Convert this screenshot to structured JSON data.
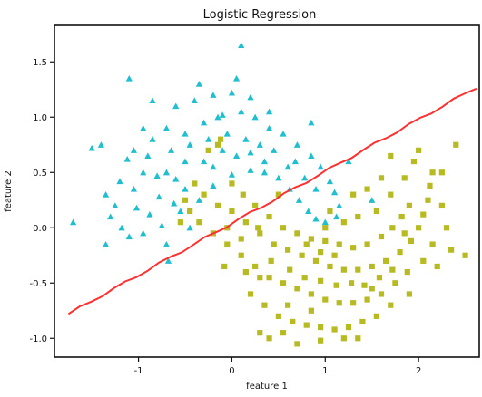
{
  "chart_data": {
    "type": "scatter",
    "title": "Logistic Regression",
    "xlabel": "feature 1",
    "ylabel": "feature 2",
    "xlim": [
      -1.9,
      2.65
    ],
    "ylim": [
      -1.17,
      1.83
    ],
    "xticks": [
      -1,
      0,
      1,
      2
    ],
    "xtick_labels": [
      "-1",
      "0",
      "1",
      "2"
    ],
    "yticks": [
      -1.0,
      -0.5,
      0.0,
      0.5,
      1.0,
      1.5
    ],
    "ytick_labels": [
      "-1.0",
      "-0.5",
      "0.0",
      "0.5",
      "1.0",
      "1.5"
    ],
    "grid": false,
    "legend": false,
    "colors": {
      "class_0": "#1fbfcf",
      "class_1": "#b8ba22",
      "decision_boundary": "#ff3030",
      "axes": "#111111"
    },
    "series": [
      {
        "marker": "triangle",
        "color": "#1fbfcf",
        "points": [
          [
            -1.2,
            0.42
          ],
          [
            -1.05,
            0.35
          ],
          [
            -0.95,
            0.5
          ],
          [
            -0.8,
            0.47
          ],
          [
            -0.6,
            0.44
          ],
          [
            -0.85,
            0.8
          ],
          [
            -0.7,
            0.9
          ],
          [
            -0.5,
            0.85
          ],
          [
            -0.3,
            0.95
          ],
          [
            -0.1,
            1.02
          ],
          [
            0.1,
            1.05
          ],
          [
            0.25,
            1.0
          ],
          [
            0.4,
            0.9
          ],
          [
            0.55,
            0.85
          ],
          [
            0.7,
            0.75
          ],
          [
            0.85,
            0.65
          ],
          [
            0.95,
            0.55
          ],
          [
            1.05,
            0.42
          ],
          [
            1.1,
            0.32
          ],
          [
            1.15,
            0.2
          ],
          [
            -1.35,
            0.3
          ],
          [
            -1.3,
            0.1
          ],
          [
            -1.25,
            0.2
          ],
          [
            -1.18,
            0.0
          ],
          [
            -1.1,
            -0.08
          ],
          [
            -0.95,
            -0.05
          ],
          [
            -0.75,
            0.02
          ],
          [
            -0.55,
            0.15
          ],
          [
            -0.35,
            0.25
          ],
          [
            -0.2,
            0.38
          ],
          [
            0.0,
            0.48
          ],
          [
            0.2,
            0.52
          ],
          [
            0.35,
            0.5
          ],
          [
            0.5,
            0.45
          ],
          [
            0.62,
            0.35
          ],
          [
            0.72,
            0.25
          ],
          [
            0.82,
            0.15
          ],
          [
            0.9,
            0.08
          ],
          [
            1.0,
            0.05
          ],
          [
            -1.05,
            0.7
          ],
          [
            -0.9,
            0.65
          ],
          [
            -0.65,
            0.7
          ],
          [
            -0.45,
            0.75
          ],
          [
            -0.25,
            0.8
          ],
          [
            -0.05,
            0.85
          ],
          [
            0.15,
            0.8
          ],
          [
            0.3,
            0.75
          ],
          [
            -0.7,
            0.5
          ],
          [
            -0.5,
            0.6
          ],
          [
            -0.3,
            0.6
          ],
          [
            -0.1,
            0.7
          ],
          [
            0.05,
            0.65
          ],
          [
            0.2,
            0.68
          ],
          [
            0.45,
            0.7
          ],
          [
            -0.6,
            1.1
          ],
          [
            -0.4,
            1.15
          ],
          [
            -0.2,
            1.2
          ],
          [
            0.0,
            1.22
          ],
          [
            0.2,
            1.18
          ],
          [
            -0.85,
            1.15
          ],
          [
            0.05,
            1.35
          ],
          [
            -0.95,
            0.9
          ],
          [
            -1.12,
            0.62
          ],
          [
            -0.78,
            0.28
          ],
          [
            -0.88,
            0.12
          ],
          [
            -0.62,
            0.22
          ],
          [
            -1.02,
            0.18
          ],
          [
            0.6,
            0.55
          ],
          [
            0.78,
            0.45
          ],
          [
            0.68,
            0.6
          ],
          [
            0.9,
            0.35
          ],
          [
            1.12,
            0.1
          ],
          [
            1.25,
            0.6
          ],
          [
            1.5,
            0.25
          ],
          [
            0.85,
            0.95
          ],
          [
            -1.4,
            0.75
          ],
          [
            -1.5,
            0.72
          ],
          [
            -1.7,
            0.05
          ],
          [
            -1.1,
            1.35
          ],
          [
            0.1,
            1.65
          ],
          [
            -0.7,
            -0.15
          ],
          [
            -0.45,
            0.0
          ],
          [
            -1.35,
            -0.15
          ],
          [
            -0.68,
            -0.3
          ],
          [
            0.35,
            0.6
          ],
          [
            -0.2,
            0.55
          ],
          [
            -0.5,
            0.35
          ],
          [
            -0.15,
            1.0
          ],
          [
            0.4,
            1.05
          ],
          [
            -0.35,
            1.3
          ]
        ]
      },
      {
        "marker": "square",
        "color": "#b8ba22",
        "points": [
          [
            -0.4,
            0.4
          ],
          [
            -0.3,
            0.3
          ],
          [
            -0.15,
            0.2
          ],
          [
            0.0,
            0.15
          ],
          [
            0.15,
            0.05
          ],
          [
            0.3,
            -0.05
          ],
          [
            0.45,
            -0.15
          ],
          [
            0.6,
            -0.2
          ],
          [
            0.75,
            -0.25
          ],
          [
            0.9,
            -0.3
          ],
          [
            1.05,
            -0.35
          ],
          [
            1.2,
            -0.38
          ],
          [
            1.35,
            -0.38
          ],
          [
            1.5,
            -0.35
          ],
          [
            1.65,
            -0.3
          ],
          [
            1.8,
            -0.22
          ],
          [
            1.92,
            -0.12
          ],
          [
            2.0,
            0.0
          ],
          [
            2.05,
            0.12
          ],
          [
            2.1,
            0.25
          ],
          [
            2.12,
            0.38
          ],
          [
            2.15,
            0.5
          ],
          [
            -0.45,
            0.15
          ],
          [
            -0.35,
            0.05
          ],
          [
            -0.2,
            -0.05
          ],
          [
            -0.05,
            -0.15
          ],
          [
            0.1,
            -0.25
          ],
          [
            0.25,
            -0.35
          ],
          [
            0.4,
            -0.45
          ],
          [
            0.55,
            -0.5
          ],
          [
            0.7,
            -0.55
          ],
          [
            0.85,
            -0.6
          ],
          [
            1.0,
            -0.65
          ],
          [
            1.15,
            -0.68
          ],
          [
            1.3,
            -0.68
          ],
          [
            1.45,
            -0.65
          ],
          [
            1.6,
            -0.6
          ],
          [
            1.75,
            -0.5
          ],
          [
            1.88,
            -0.4
          ],
          [
            0.0,
            0.4
          ],
          [
            0.12,
            0.3
          ],
          [
            0.25,
            0.2
          ],
          [
            0.4,
            0.1
          ],
          [
            0.55,
            0.0
          ],
          [
            0.7,
            -0.05
          ],
          [
            0.85,
            -0.1
          ],
          [
            1.0,
            -0.12
          ],
          [
            1.15,
            -0.15
          ],
          [
            1.3,
            -0.18
          ],
          [
            1.45,
            -0.15
          ],
          [
            1.6,
            -0.08
          ],
          [
            1.72,
            0.0
          ],
          [
            1.82,
            0.1
          ],
          [
            1.9,
            0.2
          ],
          [
            0.2,
            -0.6
          ],
          [
            0.35,
            -0.7
          ],
          [
            0.5,
            -0.8
          ],
          [
            0.65,
            -0.85
          ],
          [
            0.8,
            -0.88
          ],
          [
            0.95,
            -0.9
          ],
          [
            1.1,
            -0.92
          ],
          [
            1.25,
            -0.9
          ],
          [
            1.4,
            -0.85
          ],
          [
            1.55,
            -0.8
          ],
          [
            0.4,
            -1.0
          ],
          [
            0.7,
            -1.05
          ],
          [
            0.95,
            -1.02
          ],
          [
            1.2,
            -1.0
          ],
          [
            0.3,
            -0.95
          ],
          [
            1.05,
            0.15
          ],
          [
            1.2,
            0.05
          ],
          [
            1.35,
            0.1
          ],
          [
            1.55,
            0.15
          ],
          [
            1.7,
            0.3
          ],
          [
            1.85,
            0.45
          ],
          [
            2.0,
            0.7
          ],
          [
            1.95,
            0.6
          ],
          [
            2.25,
            0.2
          ],
          [
            2.3,
            0.0
          ],
          [
            2.35,
            -0.2
          ],
          [
            2.2,
            -0.35
          ],
          [
            2.25,
            0.5
          ],
          [
            2.4,
            0.75
          ],
          [
            2.5,
            -0.25
          ],
          [
            -0.25,
            0.7
          ],
          [
            -0.12,
            0.8
          ],
          [
            -0.15,
            0.75
          ],
          [
            0.85,
            -0.75
          ],
          [
            0.6,
            -0.7
          ],
          [
            1.7,
            -0.7
          ],
          [
            1.6,
            0.45
          ],
          [
            1.45,
            0.35
          ],
          [
            1.3,
            0.3
          ],
          [
            -0.05,
            0.0
          ],
          [
            0.1,
            -0.1
          ],
          [
            0.28,
            0.0
          ],
          [
            0.42,
            -0.3
          ],
          [
            0.62,
            -0.38
          ],
          [
            0.78,
            -0.45
          ],
          [
            0.95,
            -0.48
          ],
          [
            1.12,
            -0.52
          ],
          [
            1.28,
            -0.5
          ],
          [
            1.42,
            -0.52
          ],
          [
            1.58,
            -0.45
          ],
          [
            1.72,
            -0.38
          ],
          [
            -0.55,
            0.05
          ],
          [
            -0.5,
            0.25
          ],
          [
            1.0,
            0.0
          ],
          [
            0.5,
            0.3
          ],
          [
            1.7,
            0.65
          ],
          [
            1.85,
            -0.05
          ],
          [
            1.9,
            -0.6
          ],
          [
            0.55,
            -0.95
          ],
          [
            1.35,
            -1.0
          ],
          [
            0.3,
            -0.45
          ],
          [
            0.15,
            -0.4
          ],
          [
            -0.08,
            -0.35
          ],
          [
            0.8,
            -0.15
          ],
          [
            1.5,
            -0.55
          ],
          [
            2.05,
            -0.3
          ],
          [
            2.15,
            -0.15
          ],
          [
            0.95,
            -0.22
          ],
          [
            1.1,
            -0.25
          ]
        ]
      }
    ],
    "decision_boundary": {
      "x": [
        -1.75,
        2.62
      ],
      "y": [
        -0.78,
        1.27
      ]
    }
  }
}
